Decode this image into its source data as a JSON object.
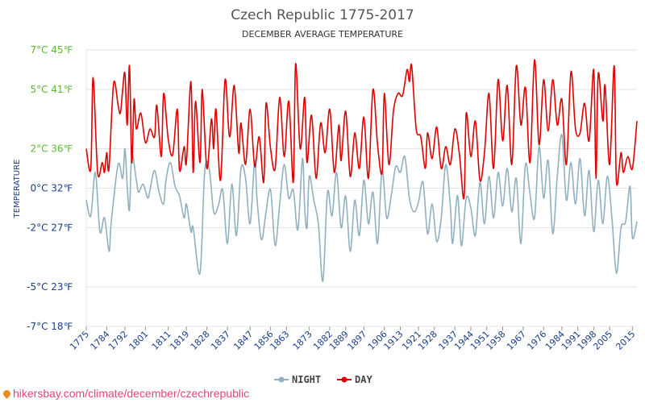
{
  "chart_data": {
    "type": "line",
    "title": "Czech Republic 1775-2017",
    "subtitle": "DECEMBER AVERAGE TEMPERATURE",
    "ylabel": "TEMPERATURE",
    "ylim": [
      -7,
      7
    ],
    "y_ticks": [
      {
        "value": 7,
        "label": "7°C 45℉",
        "color": "#5fb832"
      },
      {
        "value": 5,
        "label": "5°C 41℉",
        "color": "#5fb832"
      },
      {
        "value": 2,
        "label": "2°C 36℉",
        "color": "#5fb832"
      },
      {
        "value": 0,
        "label": "0°C 32℉",
        "color": "#1a3f8a"
      },
      {
        "value": -2,
        "label": "-2°C 27℉",
        "color": "#1a3f8a"
      },
      {
        "value": -5,
        "label": "-5°C 23℉",
        "color": "#1a3f8a"
      },
      {
        "value": -7,
        "label": "-7°C 18℉",
        "color": "#1a3f8a"
      }
    ],
    "x_range": [
      1775,
      2017
    ],
    "x_ticks": [
      "1775",
      "1784",
      "1792",
      "1801",
      "1811",
      "1819",
      "1828",
      "1837",
      "1847",
      "1856",
      "1863",
      "1873",
      "1882",
      "1889",
      "1897",
      "1906",
      "1913",
      "1921",
      "1928",
      "1937",
      "1944",
      "1951",
      "1958",
      "1967",
      "1976",
      "1984",
      "1991",
      "1998",
      "2005",
      "2015"
    ],
    "grid": true,
    "legend_position": "bottom-center",
    "series": [
      {
        "name": "NIGHT",
        "color": "#91b0c0",
        "points": [
          [
            1775,
            -0.6
          ],
          [
            1777,
            -1.4
          ],
          [
            1779,
            0.8
          ],
          [
            1781,
            -2.2
          ],
          [
            1783,
            -1.5
          ],
          [
            1785,
            -3.2
          ],
          [
            1786,
            -1.7
          ],
          [
            1789,
            1.2
          ],
          [
            1791,
            0.5
          ],
          [
            1792,
            2.0
          ],
          [
            1793,
            0.1
          ],
          [
            1794,
            -1.1
          ],
          [
            1795,
            1.7
          ],
          [
            1797,
            0.4
          ],
          [
            1798,
            -0.2
          ],
          [
            1800,
            0.2
          ],
          [
            1802,
            -0.5
          ],
          [
            1803,
            -0.1
          ],
          [
            1805,
            0.9
          ],
          [
            1807,
            -0.2
          ],
          [
            1809,
            -0.8
          ],
          [
            1810,
            0.4
          ],
          [
            1812,
            1.3
          ],
          [
            1814,
            0.1
          ],
          [
            1816,
            -0.4
          ],
          [
            1818,
            -1.5
          ],
          [
            1819,
            -0.8
          ],
          [
            1821,
            -2.2
          ],
          [
            1822,
            -2.0
          ],
          [
            1825,
            -4.3
          ],
          [
            1827,
            0.8
          ],
          [
            1829,
            1.0
          ],
          [
            1831,
            -1.2
          ],
          [
            1833,
            -0.9
          ],
          [
            1835,
            -0.1
          ],
          [
            1837,
            -2.8
          ],
          [
            1839,
            0.2
          ],
          [
            1841,
            -2.4
          ],
          [
            1843,
            1.0
          ],
          [
            1845,
            0.5
          ],
          [
            1847,
            -1.8
          ],
          [
            1849,
            1.4
          ],
          [
            1850,
            -0.5
          ],
          [
            1852,
            -2.6
          ],
          [
            1854,
            -1.2
          ],
          [
            1856,
            -0.1
          ],
          [
            1858,
            -2.9
          ],
          [
            1860,
            -0.8
          ],
          [
            1862,
            1.2
          ],
          [
            1864,
            -0.5
          ],
          [
            1866,
            -0.1
          ],
          [
            1868,
            -2.1
          ],
          [
            1870,
            1.5
          ],
          [
            1871,
            -1.0
          ],
          [
            1872,
            -2.0
          ],
          [
            1873,
            0.6
          ],
          [
            1875,
            -0.6
          ],
          [
            1877,
            -1.8
          ],
          [
            1879,
            -4.7
          ],
          [
            1881,
            -0.2
          ],
          [
            1883,
            -1.4
          ],
          [
            1885,
            0.8
          ],
          [
            1887,
            -2.0
          ],
          [
            1889,
            -0.4
          ],
          [
            1891,
            -3.2
          ],
          [
            1893,
            -0.6
          ],
          [
            1895,
            -2.4
          ],
          [
            1897,
            0.4
          ],
          [
            1899,
            -1.8
          ],
          [
            1901,
            -0.2
          ],
          [
            1903,
            -2.8
          ],
          [
            1905,
            0.9
          ],
          [
            1907,
            -1.5
          ],
          [
            1909,
            -0.4
          ],
          [
            1911,
            1.1
          ],
          [
            1913,
            0.8
          ],
          [
            1915,
            1.6
          ],
          [
            1917,
            -0.5
          ],
          [
            1919,
            -1.2
          ],
          [
            1921,
            -0.7
          ],
          [
            1923,
            0.3
          ],
          [
            1925,
            -2.3
          ],
          [
            1927,
            -0.8
          ],
          [
            1929,
            -2.7
          ],
          [
            1931,
            -1.5
          ],
          [
            1933,
            1.2
          ],
          [
            1935,
            -0.9
          ],
          [
            1936,
            -2.8
          ],
          [
            1938,
            -0.4
          ],
          [
            1939,
            -1.6
          ],
          [
            1940,
            -2.9
          ],
          [
            1942,
            -0.5
          ],
          [
            1944,
            -1.0
          ],
          [
            1946,
            -2.4
          ],
          [
            1948,
            0.3
          ],
          [
            1950,
            -1.8
          ],
          [
            1952,
            0.6
          ],
          [
            1954,
            -1.5
          ],
          [
            1956,
            0.8
          ],
          [
            1958,
            -0.9
          ],
          [
            1960,
            1.0
          ],
          [
            1962,
            -1.2
          ],
          [
            1964,
            0.5
          ],
          [
            1966,
            -2.8
          ],
          [
            1968,
            1.2
          ],
          [
            1970,
            -0.3
          ],
          [
            1972,
            -1.5
          ],
          [
            1974,
            2.1
          ],
          [
            1976,
            -0.5
          ],
          [
            1978,
            1.4
          ],
          [
            1980,
            -2.3
          ],
          [
            1982,
            0.6
          ],
          [
            1984,
            2.7
          ],
          [
            1986,
            -0.6
          ],
          [
            1988,
            1.3
          ],
          [
            1990,
            -0.8
          ],
          [
            1992,
            1.5
          ],
          [
            1994,
            -1.4
          ],
          [
            1996,
            0.9
          ],
          [
            1998,
            -2.2
          ],
          [
            2000,
            0.4
          ],
          [
            2002,
            -1.8
          ],
          [
            2004,
            0.6
          ],
          [
            2006,
            -1.5
          ],
          [
            2008,
            -4.3
          ],
          [
            2010,
            -2.0
          ],
          [
            2012,
            -1.7
          ],
          [
            2014,
            0.1
          ],
          [
            2015,
            -2.5
          ],
          [
            2017,
            -1.7
          ]
        ]
      },
      {
        "name": "DAY",
        "color": "#e00000",
        "points": [
          [
            1775,
            2.0
          ],
          [
            1777,
            1.0
          ],
          [
            1778,
            5.6
          ],
          [
            1780,
            0.8
          ],
          [
            1782,
            1.3
          ],
          [
            1783,
            0.8
          ],
          [
            1784,
            1.8
          ],
          [
            1785,
            1.0
          ],
          [
            1787,
            5.3
          ],
          [
            1789,
            4.2
          ],
          [
            1790,
            3.8
          ],
          [
            1791,
            5.0
          ],
          [
            1792,
            5.8
          ],
          [
            1793,
            3.2
          ],
          [
            1794,
            6.2
          ],
          [
            1795,
            1.3
          ],
          [
            1796,
            4.5
          ],
          [
            1797,
            3.0
          ],
          [
            1799,
            3.8
          ],
          [
            1801,
            2.3
          ],
          [
            1803,
            3.0
          ],
          [
            1805,
            2.6
          ],
          [
            1806,
            4.2
          ],
          [
            1808,
            1.6
          ],
          [
            1809,
            4.8
          ],
          [
            1811,
            2.5
          ],
          [
            1813,
            1.7
          ],
          [
            1815,
            4.0
          ],
          [
            1816,
            0.9
          ],
          [
            1818,
            2.1
          ],
          [
            1819,
            1.3
          ],
          [
            1821,
            5.4
          ],
          [
            1822,
            0.8
          ],
          [
            1823,
            4.4
          ],
          [
            1825,
            1.3
          ],
          [
            1826,
            5.0
          ],
          [
            1828,
            1.0
          ],
          [
            1830,
            3.5
          ],
          [
            1831,
            2.0
          ],
          [
            1832,
            4.0
          ],
          [
            1834,
            0.4
          ],
          [
            1836,
            5.5
          ],
          [
            1838,
            2.6
          ],
          [
            1840,
            5.2
          ],
          [
            1842,
            1.8
          ],
          [
            1843,
            3.3
          ],
          [
            1845,
            1.2
          ],
          [
            1847,
            4.0
          ],
          [
            1849,
            1.1
          ],
          [
            1851,
            2.6
          ],
          [
            1853,
            0.3
          ],
          [
            1854,
            4.3
          ],
          [
            1856,
            2.0
          ],
          [
            1858,
            1.0
          ],
          [
            1860,
            4.6
          ],
          [
            1862,
            1.6
          ],
          [
            1864,
            4.4
          ],
          [
            1866,
            0.3
          ],
          [
            1867,
            6.3
          ],
          [
            1869,
            2.0
          ],
          [
            1871,
            4.6
          ],
          [
            1872,
            1.3
          ],
          [
            1874,
            3.7
          ],
          [
            1876,
            0.5
          ],
          [
            1878,
            3.3
          ],
          [
            1880,
            1.8
          ],
          [
            1882,
            4.0
          ],
          [
            1884,
            0.8
          ],
          [
            1886,
            3.2
          ],
          [
            1887,
            1.4
          ],
          [
            1889,
            3.9
          ],
          [
            1891,
            0.6
          ],
          [
            1893,
            2.8
          ],
          [
            1895,
            1.0
          ],
          [
            1897,
            3.6
          ],
          [
            1899,
            0.5
          ],
          [
            1901,
            5.0
          ],
          [
            1903,
            2.2
          ],
          [
            1905,
            0.8
          ],
          [
            1906,
            4.8
          ],
          [
            1908,
            1.2
          ],
          [
            1910,
            3.9
          ],
          [
            1912,
            4.8
          ],
          [
            1914,
            4.7
          ],
          [
            1916,
            6.0
          ],
          [
            1917,
            5.4
          ],
          [
            1918,
            6.2
          ],
          [
            1920,
            3.0
          ],
          [
            1922,
            2.6
          ],
          [
            1924,
            1.0
          ],
          [
            1925,
            2.8
          ],
          [
            1927,
            1.5
          ],
          [
            1929,
            3.1
          ],
          [
            1931,
            1.0
          ],
          [
            1933,
            2.1
          ],
          [
            1935,
            1.2
          ],
          [
            1937,
            3.0
          ],
          [
            1939,
            1.7
          ],
          [
            1941,
            -0.5
          ],
          [
            1942,
            3.8
          ],
          [
            1944,
            1.6
          ],
          [
            1946,
            3.4
          ],
          [
            1948,
            0.4
          ],
          [
            1950,
            1.8
          ],
          [
            1952,
            4.8
          ],
          [
            1954,
            1.0
          ],
          [
            1956,
            5.5
          ],
          [
            1958,
            2.4
          ],
          [
            1960,
            5.2
          ],
          [
            1962,
            1.2
          ],
          [
            1964,
            6.2
          ],
          [
            1966,
            3.2
          ],
          [
            1968,
            5.1
          ],
          [
            1970,
            1.3
          ],
          [
            1972,
            6.5
          ],
          [
            1974,
            2.2
          ],
          [
            1976,
            5.5
          ],
          [
            1978,
            2.9
          ],
          [
            1980,
            5.5
          ],
          [
            1982,
            3.2
          ],
          [
            1984,
            4.5
          ],
          [
            1986,
            1.2
          ],
          [
            1988,
            5.9
          ],
          [
            1990,
            3.0
          ],
          [
            1992,
            2.8
          ],
          [
            1994,
            4.3
          ],
          [
            1996,
            2.4
          ],
          [
            1998,
            6.0
          ],
          [
            1999,
            0.5
          ],
          [
            2000,
            5.8
          ],
          [
            2002,
            3.4
          ],
          [
            2003,
            5.2
          ],
          [
            2005,
            1.2
          ],
          [
            2007,
            6.2
          ],
          [
            2008,
            0.3
          ],
          [
            2010,
            1.8
          ],
          [
            2011,
            0.8
          ],
          [
            2013,
            1.6
          ],
          [
            2015,
            1.0
          ],
          [
            2017,
            3.4
          ]
        ]
      }
    ]
  },
  "watermark": "hikersbay.com/climate/december/czechrepublic"
}
